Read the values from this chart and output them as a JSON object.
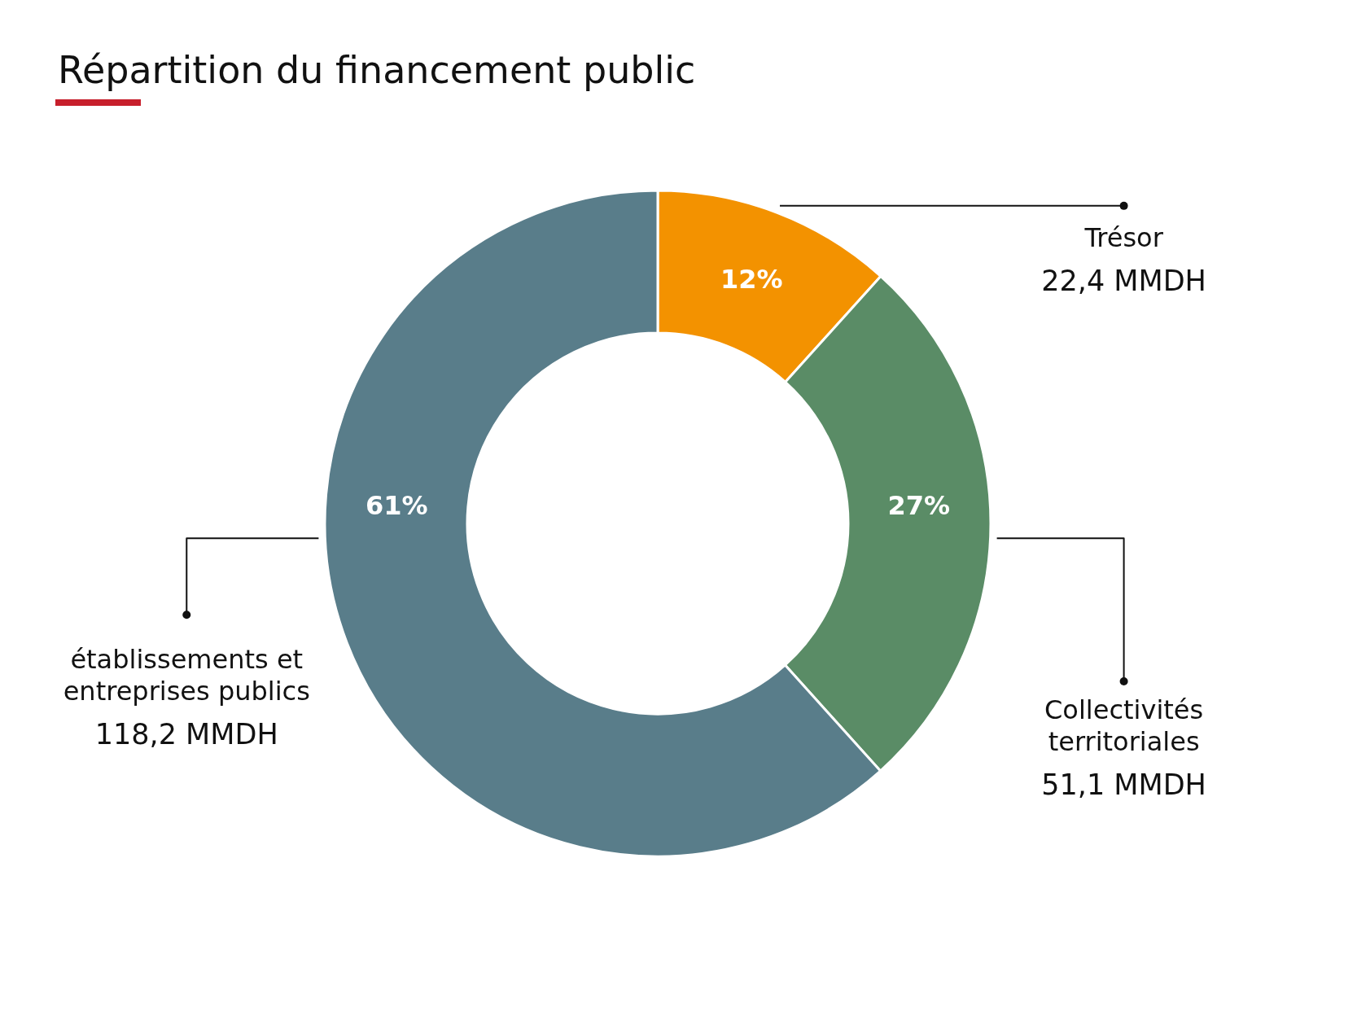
{
  "chart_data": {
    "type": "donut",
    "title": "Répartition du financement public",
    "categories": [
      "Trésor",
      "Collectivités territoriales",
      "établissements et entreprises publics"
    ],
    "values": [
      22.4,
      51.1,
      118.2
    ],
    "colors": [
      "#f39200",
      "#5a8c66",
      "#597d8a"
    ],
    "value_labels": [
      "22,4 MMDH",
      "51,1 MMDH",
      "118,2 MMDH"
    ],
    "annotations": [
      {
        "text": "12%",
        "x": "Trésor"
      },
      {
        "text": "27%",
        "x": "Collectivités territoriales"
      },
      {
        "text": "61%",
        "x": "établissements et entreprises publics"
      }
    ]
  }
}
